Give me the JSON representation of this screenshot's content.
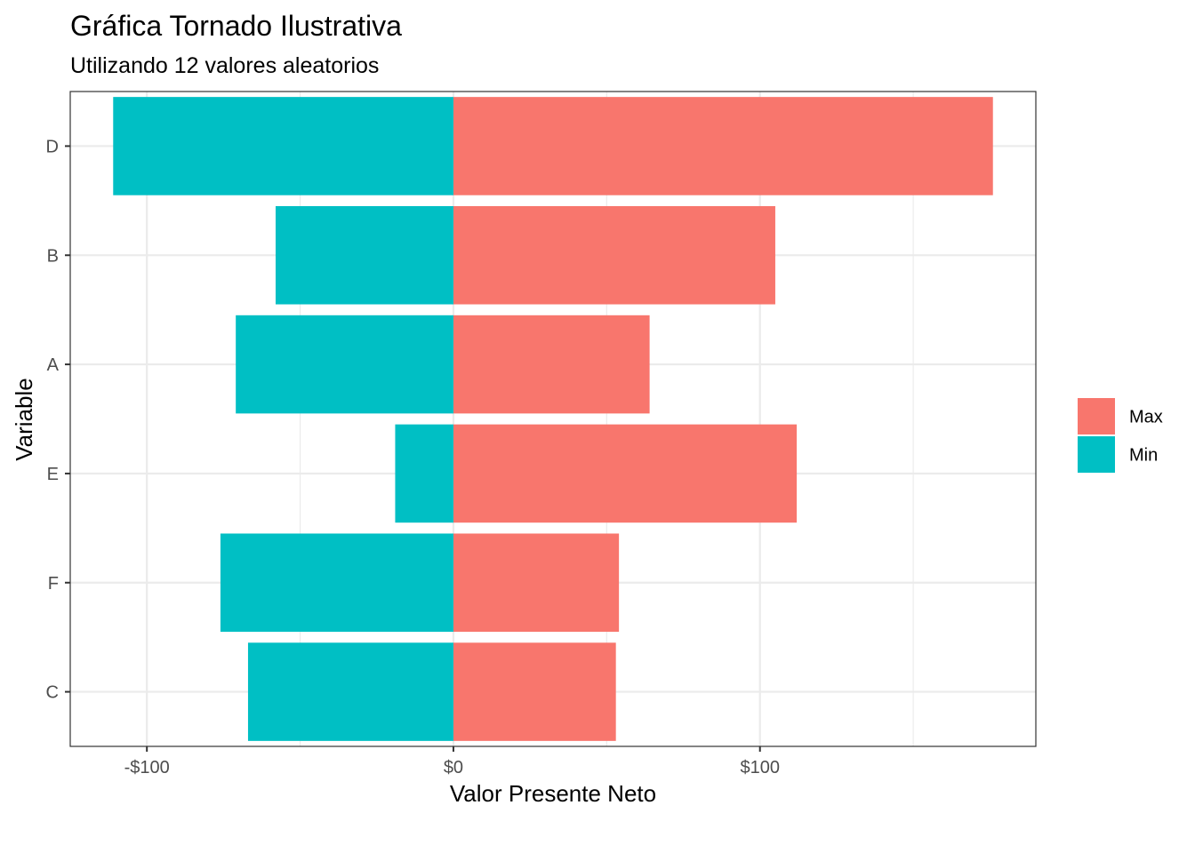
{
  "chart_data": {
    "type": "bar",
    "orientation": "horizontal",
    "title": "Gráfica Tornado Ilustrativa",
    "subtitle": "Utilizando 12 valores aleatorios",
    "xlabel": "Valor Presente Neto",
    "ylabel": "Variable",
    "xlim": [
      -125,
      190
    ],
    "x_ticks": [
      -100,
      0,
      100
    ],
    "x_tick_labels": [
      "-$100",
      "$0",
      "$100"
    ],
    "categories": [
      "D",
      "B",
      "A",
      "E",
      "F",
      "C"
    ],
    "series": [
      {
        "name": "Max",
        "color": "#F8766D",
        "values": [
          176,
          105,
          64,
          112,
          54,
          53
        ]
      },
      {
        "name": "Min",
        "color": "#00BFC4",
        "values": [
          -111,
          -58,
          -71,
          -19,
          -76,
          -67
        ]
      }
    ],
    "grid": true,
    "legend_position": "right"
  }
}
